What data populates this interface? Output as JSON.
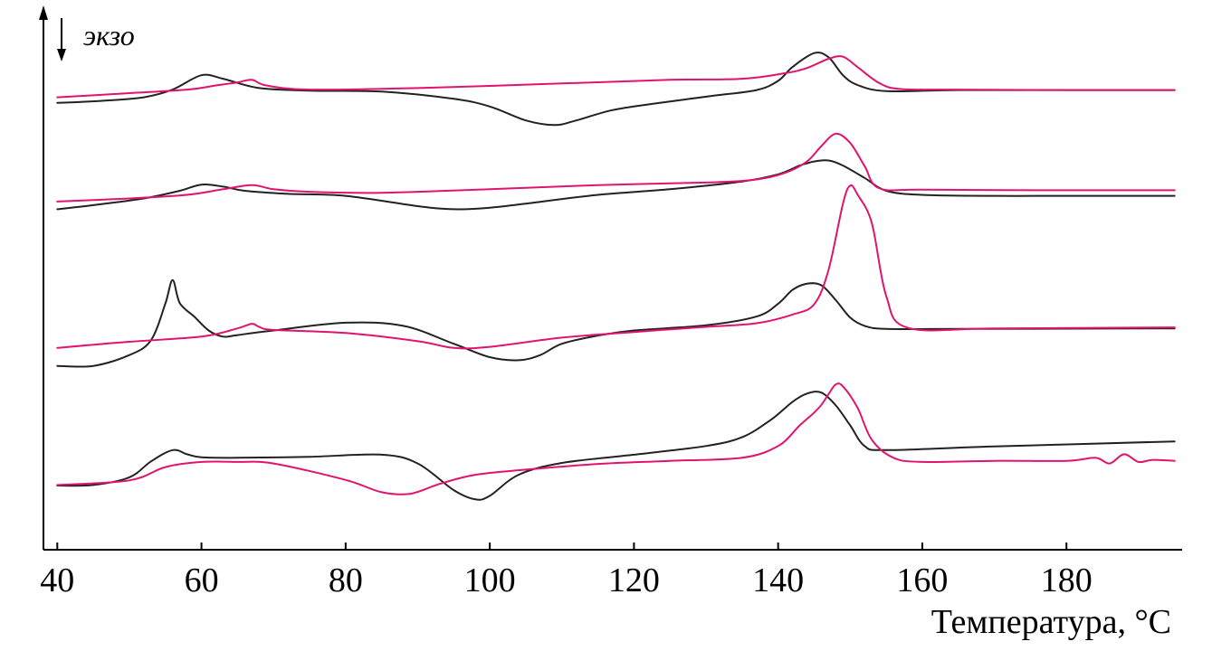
{
  "chart_data": {
    "type": "line",
    "xlabel": "Температура, °С",
    "ylabel": "",
    "exo_label": "экзо",
    "xlim": [
      38,
      195
    ],
    "ylim": [
      0,
      100
    ],
    "xticks": [
      40,
      60,
      80,
      100,
      120,
      140,
      160,
      180
    ],
    "grid": false,
    "colors": {
      "black": "#222222",
      "pink": "#e0146e"
    },
    "series": [
      {
        "color": "black",
        "x": [
          40,
          46,
          52,
          56,
          60,
          63,
          68,
          75,
          85,
          95,
          100,
          105,
          109,
          112,
          117,
          123,
          131,
          137,
          140,
          142,
          145,
          147,
          149,
          151,
          155,
          165,
          180,
          195
        ],
        "y": [
          87.0,
          87.4,
          88.1,
          89.6,
          92.4,
          91.7,
          89.9,
          89.4,
          89.2,
          87.8,
          86.3,
          83.6,
          82.7,
          83.6,
          85.6,
          86.9,
          88.4,
          89.5,
          91.3,
          94.0,
          96.7,
          95.9,
          92.4,
          90.5,
          89.3,
          89.5,
          89.5,
          89.5
        ]
      },
      {
        "color": "pink",
        "x": [
          40,
          50,
          58,
          62,
          65,
          67,
          69,
          75,
          90,
          110,
          125,
          135,
          141,
          144,
          147,
          149,
          151,
          154,
          157,
          165,
          180,
          195
        ],
        "y": [
          88.1,
          88.9,
          89.6,
          90.4,
          91.0,
          91.5,
          90.4,
          89.6,
          89.9,
          90.8,
          91.5,
          91.7,
          92.8,
          93.8,
          95.6,
          96.0,
          94.0,
          90.9,
          89.7,
          89.6,
          89.5,
          89.5
        ]
      },
      {
        "color": "black",
        "x": [
          40,
          45,
          52,
          57,
          60,
          63,
          66,
          72,
          80,
          90,
          95,
          100,
          105,
          115,
          125,
          135,
          140,
          143,
          145,
          147,
          149,
          152,
          155,
          160,
          170,
          180,
          195
        ],
        "y": [
          66.3,
          67.1,
          68.4,
          69.9,
          71.1,
          70.7,
          69.9,
          69.3,
          68.9,
          66.9,
          66.3,
          66.6,
          67.4,
          69.1,
          70.2,
          71.7,
          73.1,
          74.8,
          75.6,
          75.8,
          74.8,
          72.4,
          69.9,
          69.1,
          68.9,
          68.9,
          68.9
        ]
      },
      {
        "color": "pink",
        "x": [
          40,
          50,
          58,
          63,
          67,
          70,
          75,
          85,
          100,
          115,
          130,
          137,
          141,
          144,
          146,
          148,
          150,
          152,
          154,
          160,
          180,
          195
        ],
        "y": [
          67.8,
          68.4,
          69.1,
          70.2,
          71.0,
          70.2,
          69.7,
          69.5,
          70.2,
          71.0,
          71.5,
          72.1,
          73.4,
          75.6,
          78.6,
          81.0,
          79.2,
          74.7,
          70.4,
          70.1,
          70.0,
          70.0
        ]
      },
      {
        "color": "black",
        "x": [
          40,
          45,
          50,
          53,
          55,
          56,
          57,
          59,
          61,
          63,
          65,
          70,
          80,
          88,
          95,
          100,
          104,
          107,
          110,
          115,
          120,
          130,
          137,
          140,
          142,
          144,
          146,
          148,
          150,
          152,
          155,
          165,
          195
        ],
        "y": [
          35.8,
          35.8,
          37.9,
          40.8,
          48.0,
          52.5,
          48.0,
          45.4,
          42.7,
          41.5,
          41.8,
          42.7,
          44.2,
          43.6,
          40.1,
          37.5,
          36.9,
          37.9,
          40.1,
          41.7,
          42.7,
          43.7,
          45.4,
          47.9,
          50.6,
          51.8,
          51.5,
          48.6,
          45.2,
          43.6,
          43.0,
          43.0,
          43.1
        ]
      },
      {
        "color": "pink",
        "x": [
          40,
          50,
          60,
          65,
          67,
          68,
          70,
          80,
          90,
          95,
          100,
          110,
          120,
          130,
          137,
          142,
          145,
          147,
          149,
          150,
          151,
          153,
          155,
          158,
          170,
          195
        ],
        "y": [
          39.3,
          40.5,
          41.5,
          43.1,
          44.0,
          43.4,
          42.8,
          42.2,
          40.6,
          39.3,
          39.5,
          41.3,
          42.4,
          43.4,
          44.1,
          45.8,
          47.8,
          54.5,
          67.4,
          70.9,
          69.2,
          63.6,
          49.4,
          43.2,
          43.1,
          43.3
        ]
      },
      {
        "color": "black",
        "x": [
          40,
          45,
          50,
          53,
          56,
          58,
          60,
          65,
          75,
          85,
          90,
          95,
          98,
          100,
          104,
          110,
          120,
          130,
          135,
          139,
          142,
          144,
          146,
          148,
          150,
          152,
          155,
          170,
          195
        ],
        "y": [
          12.5,
          12.6,
          14.1,
          17.2,
          19.4,
          18.6,
          18.0,
          17.9,
          18.1,
          18.5,
          16.8,
          11.6,
          9.8,
          10.5,
          14.6,
          16.9,
          18.5,
          20.2,
          21.9,
          25.3,
          28.8,
          30.4,
          30.6,
          28.1,
          24.2,
          20.2,
          19.4,
          20.1,
          21.1
        ]
      },
      {
        "color": "pink",
        "x": [
          40,
          50,
          55,
          60,
          65,
          70,
          80,
          85,
          89,
          93,
          98,
          105,
          115,
          125,
          135,
          140,
          143,
          145,
          146,
          147,
          148,
          149,
          151,
          153,
          156,
          160,
          170,
          180,
          184,
          186,
          188,
          190,
          192,
          195
        ],
        "y": [
          12.6,
          13.5,
          16.1,
          17.1,
          17.1,
          16.8,
          13.6,
          11.2,
          10.9,
          12.8,
          14.6,
          15.6,
          16.7,
          17.3,
          17.9,
          20.2,
          24.2,
          26.7,
          28.2,
          30.3,
          32.2,
          31.8,
          27.7,
          21.4,
          17.9,
          17.1,
          17.3,
          17.3,
          17.9,
          16.8,
          18.6,
          17.1,
          17.5,
          17.3
        ]
      }
    ]
  }
}
